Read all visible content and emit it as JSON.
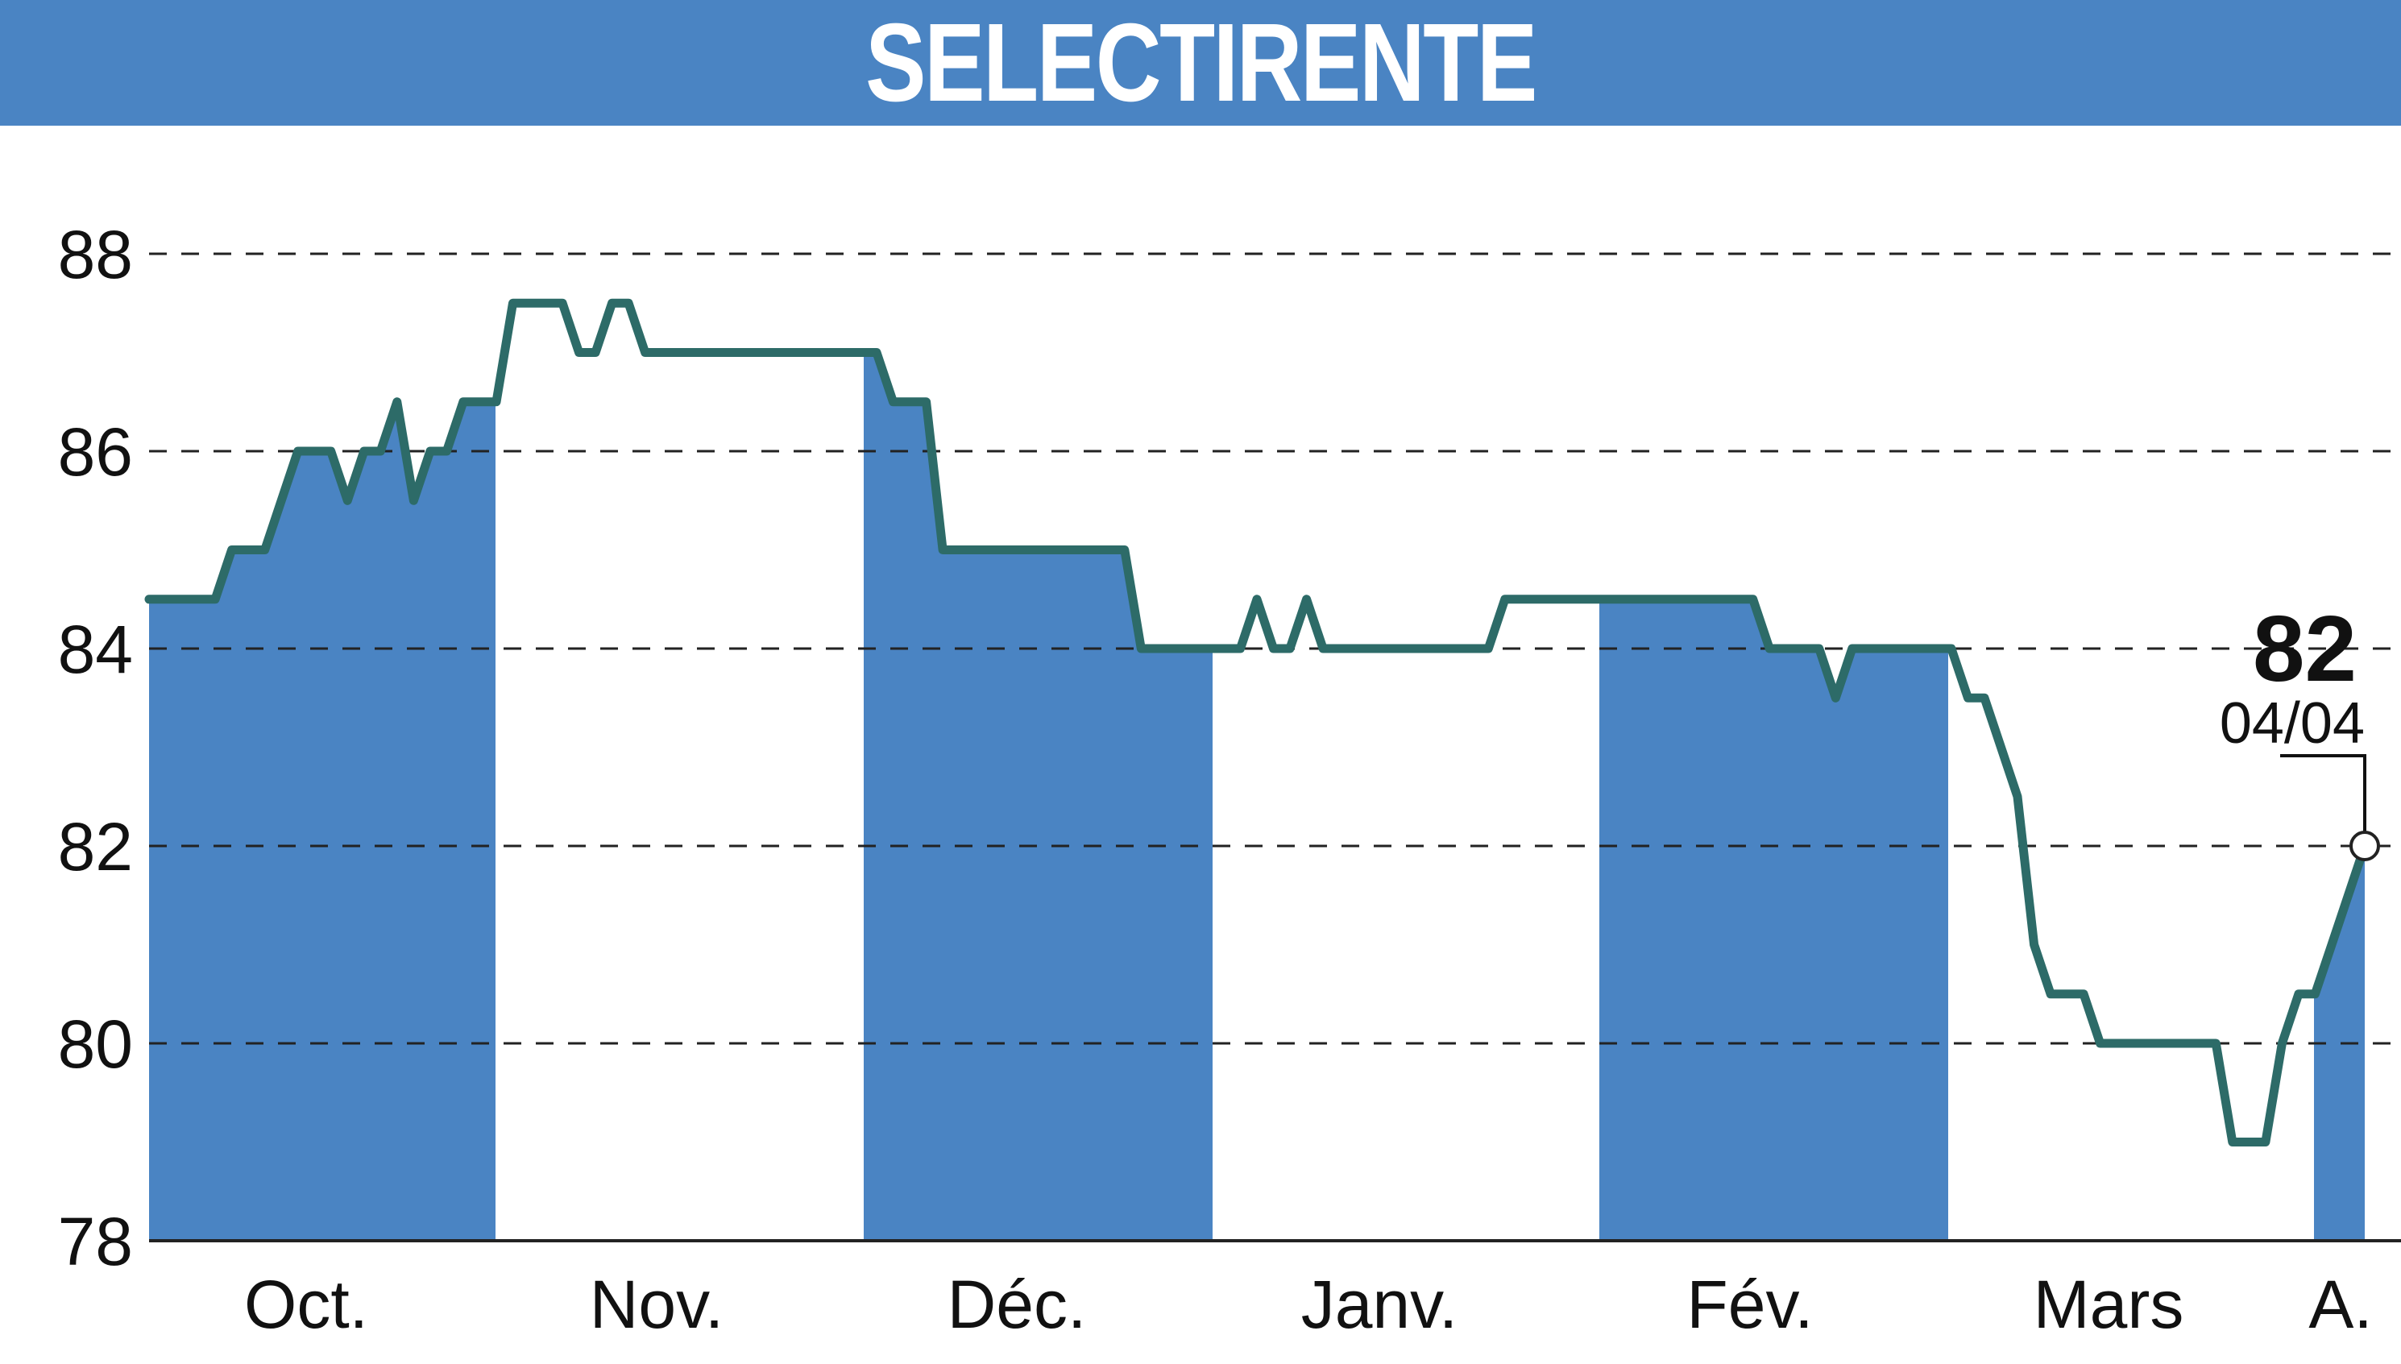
{
  "header": {
    "title": "SELECTIRENTE"
  },
  "colors": {
    "header_bg": "#4a84c3",
    "band_fill": "#4a84c3",
    "line": "#2d6b68",
    "grid": "#222222"
  },
  "chart_data": {
    "type": "line",
    "title": "SELECTIRENTE",
    "xlabel": "",
    "ylabel": "",
    "ylim": [
      78,
      88
    ],
    "yticks": [
      78,
      80,
      82,
      84,
      86,
      88
    ],
    "grid": "horizontal-dashed",
    "month_labels": [
      "Oct.",
      "Nov.",
      "Déc.",
      "Janv.",
      "Fév.",
      "Mars",
      "A."
    ],
    "shaded_months": [
      "Oct.",
      "Déc.",
      "Fév.",
      "A."
    ],
    "last_value": {
      "label": "82",
      "date": "04/04",
      "value": 82
    },
    "series": [
      {
        "values": [
          84.5,
          84.5,
          84.5,
          84.5,
          84.5,
          85,
          85,
          85,
          85.5,
          86,
          86,
          86,
          85.5,
          86,
          86,
          86.5,
          85.5,
          86,
          86,
          86.5,
          86.5,
          86.5,
          87.5,
          87.5,
          87.5,
          87.5,
          87,
          87,
          87.5,
          87.5,
          87,
          87,
          87,
          87,
          87,
          87,
          87,
          87,
          87,
          87,
          87,
          87,
          87,
          87,
          87,
          86.5,
          86.5,
          86.5,
          85,
          85,
          85,
          85,
          85,
          85,
          85,
          85,
          85,
          85,
          85,
          85,
          84,
          84,
          84,
          84,
          84,
          84,
          84,
          84.5,
          84,
          84,
          84.5,
          84,
          84,
          84,
          84,
          84,
          84,
          84,
          84,
          84,
          84,
          84,
          84.5,
          84.5,
          84.5,
          84.5,
          84.5,
          84.5,
          84.5,
          84.5,
          84.5,
          84.5,
          84.5,
          84.5,
          84.5,
          84.5,
          84.5,
          84.5,
          84,
          84,
          84,
          84,
          83.5,
          84,
          84,
          84,
          84,
          84,
          84,
          84,
          83.5,
          83.5,
          83,
          82.5,
          81,
          80.5,
          80.5,
          80.5,
          80,
          80,
          80,
          80,
          80,
          80,
          80,
          80,
          79,
          79,
          79,
          80,
          80.5,
          80.5,
          81,
          81.5,
          82
        ]
      }
    ]
  }
}
